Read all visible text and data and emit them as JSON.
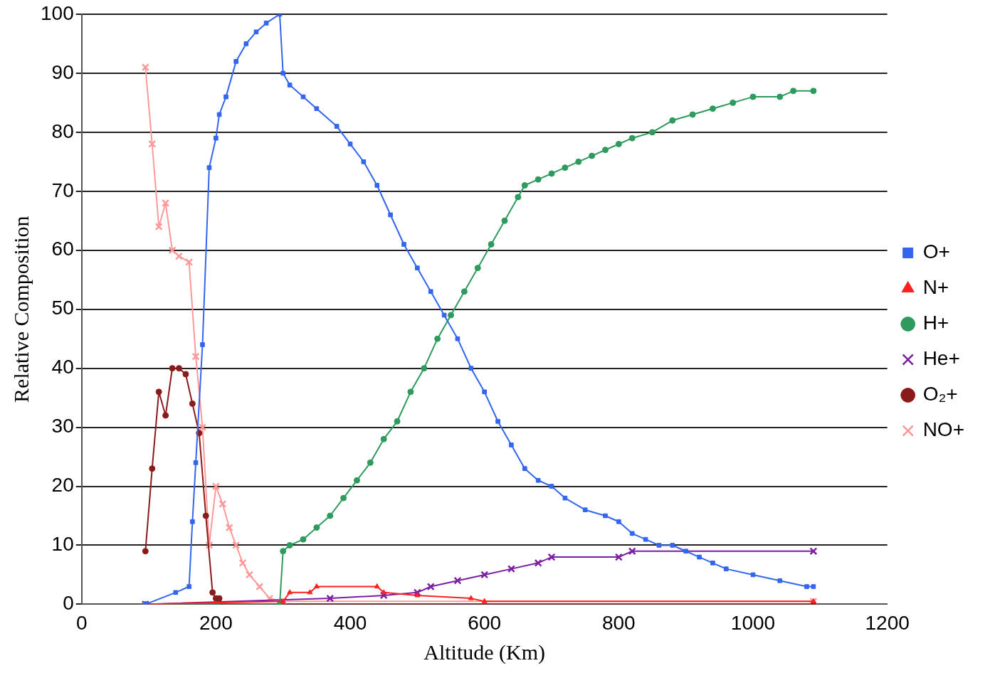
{
  "chart_data": {
    "type": "line",
    "xlabel": "Altitude (Km)",
    "ylabel": "Relative Composition",
    "xlim": [
      0,
      1200
    ],
    "xticks": [
      0,
      200,
      400,
      600,
      800,
      1000,
      1200
    ],
    "ylim": [
      0,
      100
    ],
    "yticks": [
      0,
      10,
      20,
      30,
      40,
      50,
      60,
      70,
      80,
      90,
      100
    ],
    "grid": "y",
    "legend": "right",
    "line_style": "solid",
    "series": [
      {
        "name": "O+",
        "color": "#3366ee",
        "marker": "square",
        "x": [
          95,
          140,
          160,
          165,
          170,
          180,
          190,
          200,
          205,
          215,
          230,
          245,
          260,
          275,
          295,
          300,
          310,
          330,
          350,
          380,
          400,
          420,
          440,
          460,
          480,
          500,
          520,
          540,
          560,
          580,
          600,
          620,
          640,
          660,
          680,
          700,
          720,
          750,
          780,
          800,
          820,
          840,
          860,
          880,
          900,
          920,
          940,
          960,
          1000,
          1040,
          1080,
          1090
        ],
        "values": [
          0,
          2,
          3,
          14,
          24,
          44,
          74,
          79,
          83,
          86,
          92,
          95,
          97,
          98.5,
          100,
          90,
          88,
          86,
          84,
          81,
          78,
          75,
          71,
          66,
          61,
          57,
          53,
          49,
          45,
          40,
          36,
          31,
          27,
          23,
          21,
          20,
          18,
          16,
          15,
          14,
          12,
          11,
          10,
          10,
          9,
          8,
          7,
          6,
          5,
          4,
          3,
          3
        ]
      },
      {
        "name": "N+",
        "color": "#ff2020",
        "marker": "triangle",
        "x": [
          95,
          300,
          310,
          340,
          350,
          440,
          450,
          500,
          580,
          600,
          1090
        ],
        "values": [
          0,
          0.5,
          2,
          2,
          3,
          3,
          2,
          1.5,
          1,
          0.5,
          0.5
        ]
      },
      {
        "name": "H+",
        "color": "#2e9a5e",
        "marker": "circle",
        "x": [
          95,
          295,
          300,
          310,
          330,
          350,
          370,
          390,
          410,
          430,
          450,
          470,
          490,
          510,
          530,
          550,
          570,
          590,
          610,
          630,
          650,
          660,
          680,
          700,
          720,
          740,
          760,
          780,
          800,
          820,
          850,
          880,
          910,
          940,
          970,
          1000,
          1040,
          1060,
          1090
        ],
        "values": [
          0,
          0,
          9,
          10,
          11,
          13,
          15,
          18,
          21,
          24,
          28,
          31,
          36,
          40,
          45,
          49,
          53,
          57,
          61,
          65,
          69,
          71,
          72,
          73,
          74,
          75,
          76,
          77,
          78,
          79,
          80,
          82,
          83,
          84,
          85,
          86,
          86,
          87,
          87
        ]
      },
      {
        "name": "He+",
        "color": "#7b1fa2",
        "marker": "cross",
        "x": [
          95,
          370,
          450,
          500,
          520,
          560,
          600,
          640,
          680,
          700,
          800,
          820,
          1090
        ],
        "values": [
          0,
          1,
          1.5,
          2,
          3,
          4,
          5,
          6,
          7,
          8,
          8,
          9,
          9
        ]
      },
      {
        "name": "O₂+",
        "color": "#8b1a1a",
        "marker": "circle",
        "x": [
          95,
          105,
          115,
          125,
          135,
          145,
          155,
          165,
          175,
          185,
          195,
          200,
          205,
          210,
          1090
        ],
        "values": [
          9,
          23,
          36,
          32,
          40,
          40,
          39,
          34,
          29,
          15,
          2,
          1,
          1,
          0,
          0
        ]
      },
      {
        "name": "NO+",
        "color": "#ff9999",
        "marker": "cross",
        "x": [
          95,
          105,
          115,
          125,
          135,
          145,
          160,
          170,
          180,
          190,
          200,
          210,
          220,
          230,
          240,
          250,
          265,
          280,
          300,
          1090
        ],
        "values": [
          91,
          78,
          64,
          68,
          60,
          59,
          58,
          42,
          30,
          10,
          20,
          17,
          13,
          10,
          7,
          5,
          3,
          1,
          0.5,
          0.5
        ]
      }
    ]
  }
}
